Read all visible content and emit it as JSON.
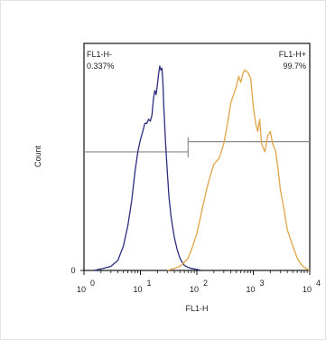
{
  "chart_data": {
    "type": "line",
    "xlabel": "FL1-H",
    "ylabel": "Count",
    "x_scale": "log",
    "xlim": [
      1,
      10000
    ],
    "x_ticks": [
      {
        "base": "10",
        "exp": "0",
        "value": 1
      },
      {
        "base": "10",
        "exp": "1",
        "value": 10
      },
      {
        "base": "10",
        "exp": "2",
        "value": 100
      },
      {
        "base": "10",
        "exp": "3",
        "value": 1000
      },
      {
        "base": "10",
        "exp": "4",
        "value": 10000
      }
    ],
    "y_tick_labels": [
      "0"
    ],
    "ylim": [
      0,
      100
    ],
    "gates": [
      {
        "name": "FL1-H-",
        "percent": "0.337%",
        "range": [
          1,
          70
        ],
        "level": 58
      },
      {
        "name": "FL1-H+",
        "percent": "99.7%",
        "range": [
          70,
          10000
        ],
        "level": 63
      }
    ],
    "series": [
      {
        "color": "#2d2e7f",
        "x": [
          1.5,
          2.2,
          3,
          4,
          5,
          6,
          7,
          8,
          9,
          10,
          11,
          12,
          13,
          14,
          15,
          16,
          17,
          18,
          19,
          20,
          21,
          22,
          23,
          24,
          25,
          26,
          28,
          30,
          32,
          35,
          40,
          45,
          50,
          55,
          60,
          70,
          80,
          100,
          120
        ],
        "y": [
          0,
          1,
          2,
          5,
          12,
          22,
          34,
          48,
          58,
          64,
          68,
          72,
          72,
          74,
          73,
          76,
          84,
          88,
          86,
          91,
          96,
          100,
          98,
          99,
          92,
          80,
          62,
          48,
          36,
          26,
          16,
          10,
          6,
          4,
          2.5,
          1.5,
          1,
          0.5,
          0
        ]
      },
      {
        "color": "#e0a546",
        "x": [
          30,
          40,
          50,
          60,
          70,
          80,
          100,
          120,
          150,
          180,
          200,
          250,
          300,
          350,
          400,
          500,
          550,
          600,
          650,
          700,
          800,
          900,
          1000,
          1100,
          1200,
          1300,
          1400,
          1600,
          1800,
          2000,
          2200,
          2500,
          2800,
          3000,
          3500,
          4000,
          5000,
          6000,
          7000,
          8000,
          10000
        ],
        "y": [
          0,
          1,
          2,
          4,
          6,
          10,
          18,
          28,
          40,
          48,
          52,
          55,
          62,
          72,
          82,
          90,
          95,
          92,
          96,
          98,
          97,
          94,
          80,
          72,
          68,
          74,
          62,
          58,
          66,
          68,
          62,
          58,
          48,
          40,
          30,
          20,
          12,
          6,
          3,
          1.5,
          0
        ]
      }
    ]
  }
}
